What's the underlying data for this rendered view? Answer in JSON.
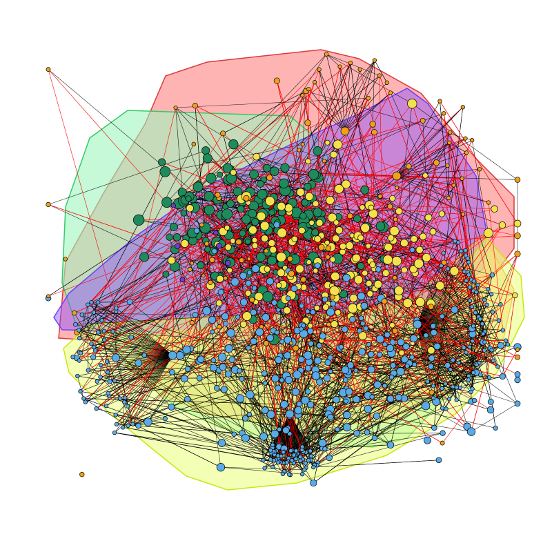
{
  "diagram": {
    "kind": "community network graph",
    "background": "#ffffff",
    "communities": [
      {
        "id": "green",
        "node_color": "#1f8a5c",
        "hull_fill": "#7ff2a6",
        "hull_stroke": "#33cc66",
        "node_count": 180
      },
      {
        "id": "yellow",
        "node_color": "#f3e24b",
        "hull_fill": "#e9ff6e",
        "hull_stroke": "#c8e60f",
        "node_count": 170
      },
      {
        "id": "blue",
        "node_color": "#5aaae6",
        "hull_fill": "#ffc27a",
        "hull_stroke": "#e8a64a",
        "node_count": 260
      },
      {
        "id": "orange",
        "node_color": "#f0a11a",
        "hull_fill": "#ff6a6a",
        "hull_stroke": "#d93b3b",
        "node_count": 75
      },
      {
        "id": "purple",
        "node_color": "#6b3fd1",
        "hull_fill": "#8a4dff",
        "hull_stroke": "#6a3dff",
        "node_count": 6
      }
    ],
    "edge_colors": {
      "within": "#000000",
      "between": "#ff0000"
    },
    "node_outline": "#000000"
  }
}
